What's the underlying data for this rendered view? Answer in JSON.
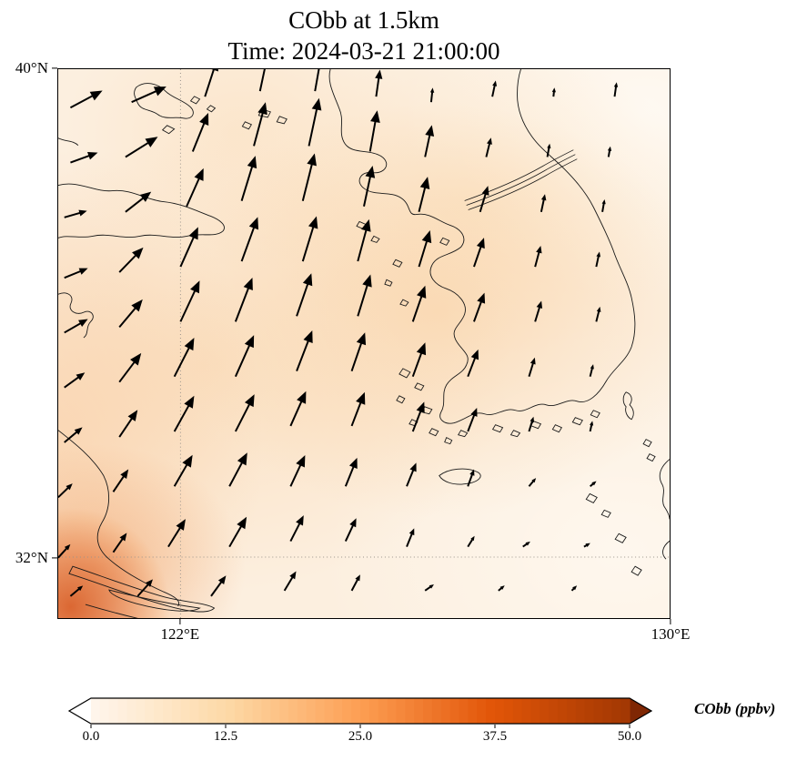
{
  "title": {
    "line1": "CObb at 1.5km",
    "line2": "Time: 2024-03-21 21:00:00"
  },
  "axes": {
    "lon_range": [
      120,
      130
    ],
    "lat_range": [
      31,
      40
    ],
    "x_ticks": [
      {
        "label": "122°E",
        "lon": 122
      },
      {
        "label": "130°E",
        "lon": 130
      }
    ],
    "y_ticks": [
      {
        "label": "40°N",
        "lat": 40
      },
      {
        "label": "32°N",
        "lat": 32
      }
    ],
    "gridlines": {
      "lon": 122,
      "lat": 32
    }
  },
  "colorbar": {
    "label": "CObb (ppbv)",
    "ticks": [
      "0.0",
      "12.5",
      "25.0",
      "37.5",
      "50.0"
    ],
    "range": [
      0,
      50
    ],
    "colormap": "Oranges",
    "extend": "both",
    "stops": [
      [
        0,
        "#fff5eb"
      ],
      [
        0.25,
        "#fdd9a6"
      ],
      [
        0.5,
        "#fd9e53"
      ],
      [
        0.75,
        "#e25508"
      ],
      [
        1,
        "#a33803"
      ]
    ],
    "under_color": "#ffffff",
    "over_color": "#7f2704",
    "outline_color": "#000000"
  },
  "chart_data": {
    "type": "heatmap",
    "title": "CObb at 1.5km",
    "subtitle": "Time: 2024-03-21 21:00:00",
    "variable": "CObb",
    "units": "ppbv",
    "level_km": 1.5,
    "time": "2024-03-21 21:00:00",
    "lon_range": [
      120,
      130
    ],
    "lat_range": [
      31,
      40
    ],
    "value_range": [
      0,
      50
    ],
    "colormap": "Oranges",
    "grid_lons": [
      120.8,
      122.6,
      124.4,
      126.2,
      128.0,
      129.8
    ],
    "grid_lats": [
      39.2,
      37.6,
      35.8,
      34.2,
      32.6,
      31.0
    ],
    "values_ppbv": [
      [
        6,
        5,
        5,
        4,
        3,
        2
      ],
      [
        7,
        6,
        5,
        5,
        4,
        3
      ],
      [
        8,
        7,
        6,
        7,
        5,
        3
      ],
      [
        9,
        8,
        7,
        8,
        6,
        4
      ],
      [
        14,
        9,
        7,
        6,
        5,
        4
      ],
      [
        26,
        12,
        8,
        6,
        5,
        4
      ]
    ],
    "field_notes": "Mostly 2-9 ppbv over the Yellow Sea and Korea; maximum plume ~25-30 ppbv in the southwest corner near 120E, 31N",
    "map_overlay": "coastlines of eastern China, Korean peninsula, Jeju, Tsushima and Kyushu islands",
    "wind_vectors": {
      "style": "black quiver arrows; prevailing southerly to southwesterly flow (arrows point N to NE), weaker in the east",
      "arrows_format": [
        "x_pct",
        "y_pct",
        "dir_deg_cw_from_north",
        "length_px"
      ],
      "arrows": [
        [
          2,
          7,
          62,
          40
        ],
        [
          12,
          6,
          66,
          42
        ],
        [
          24,
          5,
          18,
          44
        ],
        [
          33,
          4,
          12,
          50
        ],
        [
          42,
          4,
          10,
          52
        ],
        [
          52,
          5,
          8,
          30
        ],
        [
          61,
          6,
          6,
          16
        ],
        [
          71,
          5,
          12,
          18
        ],
        [
          81,
          5,
          6,
          10
        ],
        [
          91,
          5,
          8,
          16
        ],
        [
          2,
          17,
          70,
          32
        ],
        [
          11,
          16,
          58,
          42
        ],
        [
          22,
          15,
          22,
          46
        ],
        [
          32,
          14,
          15,
          50
        ],
        [
          41,
          14,
          12,
          54
        ],
        [
          51,
          15,
          10,
          46
        ],
        [
          60,
          16,
          12,
          36
        ],
        [
          70,
          16,
          14,
          22
        ],
        [
          80,
          16,
          10,
          15
        ],
        [
          90,
          16,
          10,
          12
        ],
        [
          1,
          27,
          74,
          26
        ],
        [
          11,
          26,
          52,
          36
        ],
        [
          21,
          25,
          24,
          46
        ],
        [
          30,
          24,
          17,
          52
        ],
        [
          40,
          24,
          14,
          54
        ],
        [
          50,
          25,
          12,
          46
        ],
        [
          59,
          26,
          14,
          40
        ],
        [
          69,
          26,
          17,
          30
        ],
        [
          79,
          26,
          12,
          20
        ],
        [
          89,
          26,
          10,
          14
        ],
        [
          1,
          38,
          68,
          28
        ],
        [
          10,
          37,
          44,
          38
        ],
        [
          20,
          36,
          24,
          48
        ],
        [
          30,
          35,
          20,
          52
        ],
        [
          40,
          35,
          17,
          52
        ],
        [
          49,
          35,
          15,
          48
        ],
        [
          59,
          36,
          17,
          42
        ],
        [
          68,
          36,
          19,
          34
        ],
        [
          78,
          36,
          15,
          24
        ],
        [
          88,
          36,
          12,
          17
        ],
        [
          1,
          48,
          60,
          30
        ],
        [
          10,
          47,
          40,
          40
        ],
        [
          20,
          46,
          25,
          50
        ],
        [
          29,
          46,
          21,
          52
        ],
        [
          39,
          45,
          19,
          50
        ],
        [
          49,
          45,
          17,
          48
        ],
        [
          58,
          46,
          19,
          42
        ],
        [
          68,
          46,
          20,
          34
        ],
        [
          78,
          46,
          17,
          24
        ],
        [
          88,
          46,
          14,
          17
        ],
        [
          1,
          58,
          54,
          28
        ],
        [
          10,
          57,
          37,
          40
        ],
        [
          19,
          56,
          27,
          48
        ],
        [
          29,
          56,
          24,
          50
        ],
        [
          39,
          55,
          21,
          48
        ],
        [
          48,
          55,
          19,
          45
        ],
        [
          58,
          56,
          20,
          40
        ],
        [
          67,
          56,
          21,
          32
        ],
        [
          77,
          56,
          17,
          22
        ],
        [
          87,
          56,
          14,
          14
        ],
        [
          1,
          68,
          50,
          26
        ],
        [
          10,
          67,
          34,
          36
        ],
        [
          19,
          66,
          29,
          45
        ],
        [
          29,
          66,
          27,
          46
        ],
        [
          38,
          65,
          24,
          42
        ],
        [
          48,
          65,
          21,
          40
        ],
        [
          58,
          66,
          21,
          35
        ],
        [
          67,
          66,
          21,
          28
        ],
        [
          77,
          66,
          17,
          17
        ],
        [
          87,
          66,
          12,
          12
        ],
        [
          0,
          78,
          46,
          22
        ],
        [
          9,
          77,
          34,
          30
        ],
        [
          19,
          76,
          30,
          40
        ],
        [
          28,
          76,
          28,
          42
        ],
        [
          38,
          76,
          25,
          38
        ],
        [
          47,
          76,
          22,
          34
        ],
        [
          57,
          76,
          22,
          28
        ],
        [
          67,
          76,
          20,
          20
        ],
        [
          77,
          76,
          40,
          12
        ],
        [
          87,
          76,
          50,
          9
        ],
        [
          0,
          89,
          42,
          20
        ],
        [
          9,
          88,
          35,
          26
        ],
        [
          18,
          87,
          32,
          36
        ],
        [
          28,
          87,
          30,
          38
        ],
        [
          38,
          86,
          27,
          32
        ],
        [
          47,
          86,
          25,
          28
        ],
        [
          57,
          87,
          22,
          22
        ],
        [
          67,
          87,
          32,
          14
        ],
        [
          76,
          87,
          55,
          10
        ],
        [
          86,
          87,
          60,
          8
        ],
        [
          2,
          96,
          50,
          18
        ],
        [
          13,
          96,
          42,
          25
        ],
        [
          25,
          96,
          36,
          28
        ],
        [
          37,
          95,
          31,
          25
        ],
        [
          48,
          95,
          28,
          20
        ],
        [
          60,
          95,
          55,
          12
        ],
        [
          72,
          95,
          50,
          9
        ],
        [
          84,
          95,
          45,
          8
        ]
      ]
    }
  }
}
